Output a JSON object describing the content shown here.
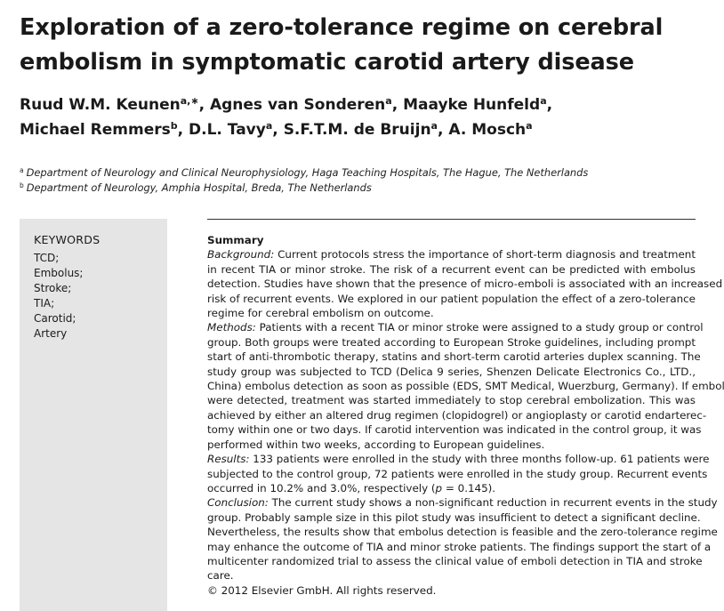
{
  "title_lines": [
    "Exploration of a zero-tolerance regime on cerebral",
    "embolism in symptomatic carotid artery disease"
  ],
  "authors": {
    "line1": [
      {
        "name": "Ruud W.M. Keunen",
        "sup": "a,∗",
        "sep": ", "
      },
      {
        "name": "Agnes van Sonderen",
        "sup": "a",
        "sep": ", "
      },
      {
        "name": "Maayke Hunfeld",
        "sup": "a",
        "sep": ","
      }
    ],
    "line2": [
      {
        "name": "Michael Remmers",
        "sup": "b",
        "sep": ", "
      },
      {
        "name": "D.L. Tavy",
        "sup": "a",
        "sep": ", "
      },
      {
        "name": "S.F.T.M. de Bruijn",
        "sup": "a",
        "sep": ", "
      },
      {
        "name": "A. Mosch",
        "sup": "a",
        "sep": ""
      }
    ]
  },
  "affiliations": [
    {
      "sup": "a",
      "text": "Department of Neurology and Clinical Neurophysiology, Haga Teaching Hospitals, The Hague, The Netherlands"
    },
    {
      "sup": "b",
      "text": "Department of Neurology, Amphia Hospital, Breda, The Netherlands"
    }
  ],
  "keywords": {
    "heading": "KEYWORDS",
    "items": [
      "TCD;",
      "Embolus;",
      "Stroke;",
      "TIA;",
      "Carotid;",
      "Artery"
    ]
  },
  "summary": {
    "heading": "Summary",
    "lines": [
      {
        "label": "Background:",
        "text": " Current protocols stress the importance of short-term diagnosis and treatment"
      },
      {
        "text": "in recent TIA or minor stroke. The risk of a recurrent event can be predicted with embolus"
      },
      {
        "text": "detection. Studies have shown that the presence of micro-emboli is associated with an increased"
      },
      {
        "text": "risk of recurrent events. We explored in our patient population the effect of a zero-tolerance"
      },
      {
        "text": "regime for cerebral embolism on outcome.",
        "last": true
      },
      {
        "label": "Methods:",
        "text": " Patients with a recent TIA or minor stroke were assigned to a study group or control"
      },
      {
        "text": "group. Both groups were treated according to European Stroke guidelines, including prompt"
      },
      {
        "text": "start of anti-thrombotic therapy, statins and short-term carotid arteries duplex scanning. The"
      },
      {
        "text": "study group was subjected to TCD (Delica 9 series, Shenzen Delicate Electronics Co., LTD.,"
      },
      {
        "text": "China) embolus detection as soon as possible (EDS, SMT Medical, Wuerzburg, Germany). If emboli"
      },
      {
        "text": "were detected, treatment was started immediately to stop cerebral embolization. This was"
      },
      {
        "text": "achieved by either an altered drug regimen (clopidogrel) or angioplasty or carotid endarterec-"
      },
      {
        "text": "tomy within one or two days. If carotid intervention was indicated in the control group, it was"
      },
      {
        "text": "performed within two weeks, according to European guidelines.",
        "last": true
      },
      {
        "label": "Results:",
        "text": " 133 patients were enrolled in the study with three months follow-up. 61 patients were"
      },
      {
        "text": "subjected to the control group, 72 patients were enrolled in the study group. Recurrent events"
      },
      {
        "text": "occurred in 10.2% and 3.0%, respectively (",
        "italic_tail": "p",
        "tail": " = 0.145).",
        "last": true
      },
      {
        "label": "Conclusion:",
        "text": " The current study shows a non-significant reduction in recurrent events in the study"
      },
      {
        "text": "group. Probably sample size in this pilot study was insufficient to detect a significant decline."
      },
      {
        "text": "Nevertheless, the results show that embolus detection is feasible and the zero-tolerance regime"
      },
      {
        "text": "may enhance the outcome of TIA and minor stroke patients. The findings support the start of a"
      },
      {
        "text": "multicenter randomized trial to assess the clinical value of emboli detection in TIA and stroke"
      },
      {
        "text": "care.",
        "last": true
      },
      {
        "text": "© 2012 Elsevier GmbH. All rights reserved.",
        "last": true
      }
    ]
  }
}
